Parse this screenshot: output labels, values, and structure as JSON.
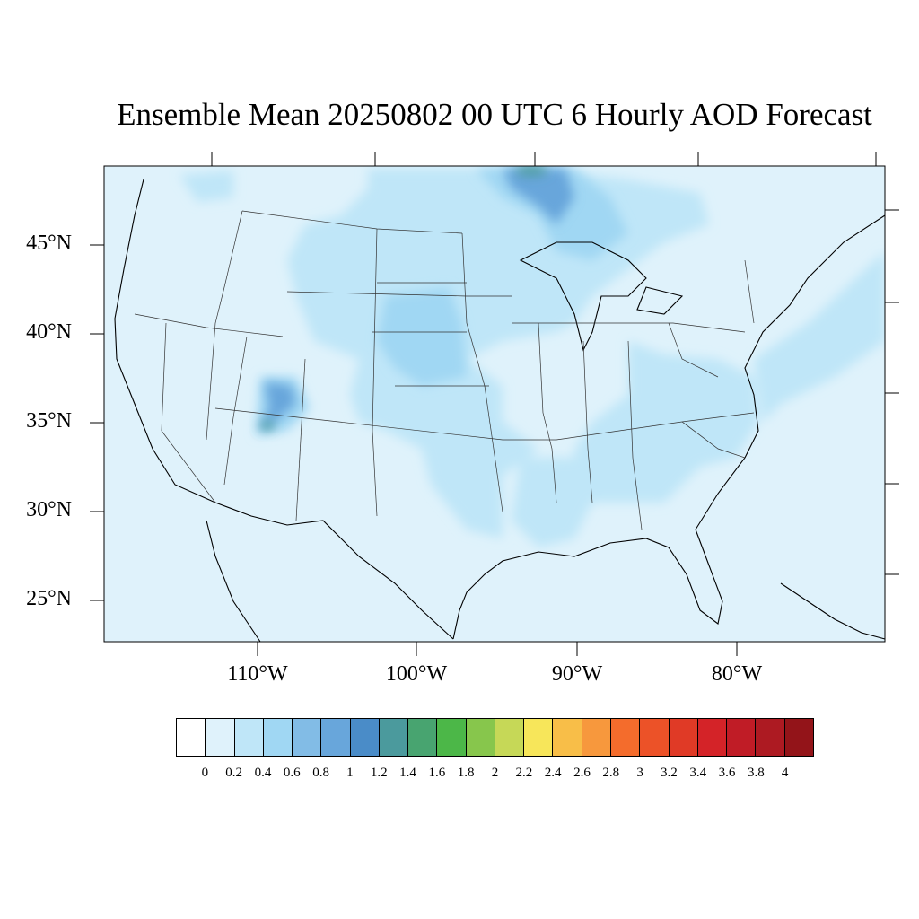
{
  "title": "Ensemble Mean 20250802 00 UTC 6 Hourly AOD Forecast",
  "map": {
    "region": "Contiguous United States",
    "background_value_color": "#dff2fb",
    "lat_ticks": [
      {
        "value": 45,
        "label": "45°N"
      },
      {
        "value": 40,
        "label": "40°N"
      },
      {
        "value": 35,
        "label": "35°N"
      },
      {
        "value": 30,
        "label": "30°N"
      },
      {
        "value": 25,
        "label": "25°N"
      }
    ],
    "lon_ticks": [
      {
        "value": -110,
        "label": "110°W"
      },
      {
        "value": -100,
        "label": "100°W"
      },
      {
        "value": -90,
        "label": "90°W"
      },
      {
        "value": -80,
        "label": "80°W"
      }
    ]
  },
  "colorbar": {
    "colors": [
      "#ffffff",
      "#dff2fb",
      "#bfe6f8",
      "#a0d7f3",
      "#82bce6",
      "#68a6db",
      "#4a8cc8",
      "#4b9a9d",
      "#48a470",
      "#4cb748",
      "#87c64c",
      "#c6d857",
      "#f7e65a",
      "#f8be48",
      "#f7983d",
      "#f46c2c",
      "#ec5228",
      "#e03a26",
      "#d42328",
      "#c01c26",
      "#ad1a22",
      "#931419"
    ],
    "labels": [
      "0",
      "0.2",
      "0.4",
      "0.6",
      "0.8",
      "1",
      "1.2",
      "1.4",
      "1.6",
      "1.8",
      "2",
      "2.2",
      "2.4",
      "2.6",
      "2.8",
      "3",
      "3.2",
      "3.4",
      "3.6",
      "3.8",
      "4"
    ]
  }
}
